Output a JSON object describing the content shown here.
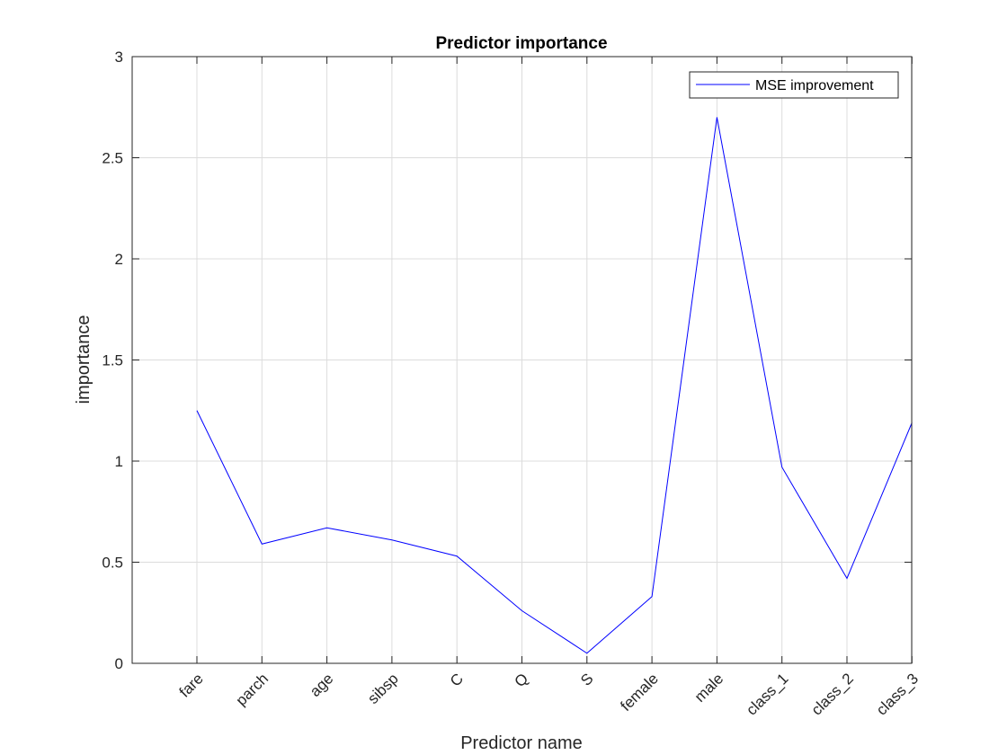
{
  "chart_data": {
    "type": "line",
    "title": "Predictor importance",
    "xlabel": "Predictor name",
    "ylabel": "importance",
    "categories": [
      "fare",
      "parch",
      "age",
      "sibsp",
      "C",
      "Q",
      "S",
      "female",
      "male",
      "class_1",
      "class_2",
      "class_3"
    ],
    "series": [
      {
        "name": "MSE improvement",
        "color": "#0000ff",
        "values": [
          1.25,
          0.59,
          0.67,
          0.61,
          0.53,
          0.26,
          0.05,
          0.33,
          2.7,
          0.97,
          0.42,
          1.19
        ]
      },
      {
        "name": "",
        "color": "#0000ff",
        "values": [
          0,
          0,
          0,
          0,
          0,
          0,
          0,
          0,
          0,
          0,
          0,
          0
        ]
      }
    ],
    "xlim": [
      -0.0,
      11.0
    ],
    "ylim": [
      0,
      3
    ],
    "yticks": [
      "0",
      "0.5",
      "1",
      "1.5",
      "2",
      "2.5",
      "3"
    ],
    "ytick_values": [
      0,
      0.5,
      1,
      1.5,
      2,
      2.5,
      3
    ],
    "grid": true,
    "legend_position": "top-right"
  }
}
